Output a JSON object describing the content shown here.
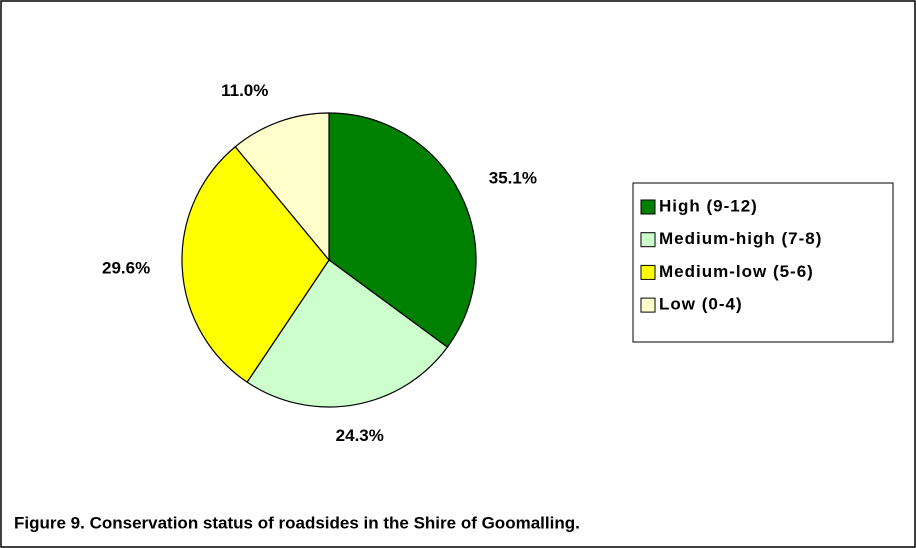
{
  "chart_data": {
    "type": "pie",
    "caption": "Figure 9. Conservation status of roadsides in the Shire of Goomalling.",
    "categories": [
      "High (9-12)",
      "Medium-high (7-8)",
      "Medium-low (5-6)",
      "Low (0-4)"
    ],
    "values": [
      35.1,
      24.3,
      29.6,
      11.0
    ],
    "value_labels": [
      "35.1%",
      "24.3%",
      "29.6%",
      "11.0%"
    ],
    "colors": [
      "#008000",
      "#ccffcc",
      "#ffff00",
      "#ffffcc"
    ],
    "legend": "right"
  }
}
